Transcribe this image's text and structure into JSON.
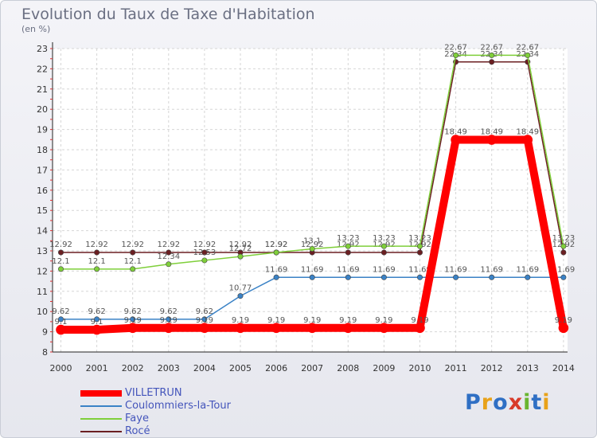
{
  "chart_data": {
    "type": "line",
    "title": "Evolution du Taux de Taxe d'Habitation",
    "subtitle": "(en %)",
    "x": [
      "2000",
      "2001",
      "2002",
      "2003",
      "2004",
      "2005",
      "2006",
      "2007",
      "2008",
      "2009",
      "2010",
      "2011",
      "2012",
      "2013",
      "2014"
    ],
    "ylim": [
      8,
      23
    ],
    "yticks": [
      8,
      9,
      10,
      11,
      12,
      13,
      14,
      15,
      16,
      17,
      18,
      19,
      20,
      21,
      22,
      23
    ],
    "series": [
      {
        "name": "Rocé",
        "color": "#6b1f22",
        "values": [
          12.92,
          12.92,
          12.92,
          12.92,
          12.92,
          12.92,
          12.92,
          12.92,
          12.92,
          12.92,
          12.92,
          22.34,
          22.34,
          22.34,
          12.92
        ],
        "labels": [
          "12.92",
          "12.92",
          "12.92",
          "12.92",
          "12.92",
          "12.92",
          "12.92",
          "12.92",
          "12.92",
          "12.92",
          "12.92",
          "22.34",
          "22.34",
          "22.34",
          "12.92"
        ]
      },
      {
        "name": "Faye",
        "color": "#7fcf3a",
        "values": [
          12.1,
          12.1,
          12.1,
          12.34,
          12.53,
          12.72,
          12.92,
          13.1,
          13.23,
          13.23,
          13.23,
          22.67,
          22.67,
          22.67,
          13.23
        ],
        "labels": [
          "12.1",
          "12.1",
          "12.1",
          "12.34",
          "12.53",
          "12.72",
          "12.92",
          "13.1",
          "13.23",
          "13.23",
          "13.23",
          "22.67",
          "22.67",
          "22.67",
          "13.23"
        ]
      },
      {
        "name": "Coulommiers-la-Tour",
        "color": "#3a82c6",
        "values": [
          9.62,
          9.62,
          9.62,
          9.62,
          9.62,
          10.77,
          11.69,
          11.69,
          11.69,
          11.69,
          11.69,
          11.69,
          11.69,
          11.69,
          11.69
        ],
        "labels": [
          "9.62",
          "9.62",
          "9.62",
          "9.62",
          "9.62",
          "10.77",
          "11.69",
          "11.69",
          "11.69",
          "11.69",
          "11.69",
          "11.69",
          "11.69",
          "11.69",
          "11.69"
        ]
      },
      {
        "name": "VILLETRUN",
        "color": "#ff0000",
        "values": [
          9.1,
          9.1,
          9.19,
          9.19,
          9.19,
          9.19,
          9.19,
          9.19,
          9.19,
          9.19,
          9.19,
          18.49,
          18.49,
          18.49,
          9.19
        ],
        "labels": [
          "9.1",
          "9.1",
          "9.19",
          "9.19",
          "9.19",
          "9.19",
          "9.19",
          "9.19",
          "9.19",
          "9.19",
          "9.19",
          "18.49",
          "18.49",
          "18.49",
          "9.19"
        ]
      }
    ],
    "legend": [
      "VILLETRUN",
      "Coulommiers-la-Tour",
      "Faye",
      "Rocé"
    ],
    "legend_position": "bottom-left"
  },
  "logo": {
    "letters": [
      "P",
      "r",
      "o",
      "x",
      "i",
      "t",
      "i"
    ]
  }
}
